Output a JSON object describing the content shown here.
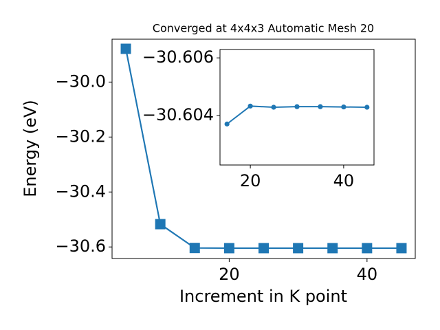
{
  "chart_data": [
    {
      "type": "line",
      "title": "Converged at 4x4x3 Automatic Mesh 20",
      "x_label": "Increment in K point",
      "y_label": "Energy (eV)",
      "x": [
        5,
        10,
        15,
        20,
        25,
        30,
        35,
        40,
        45
      ],
      "values": [
        -29.879,
        -30.517,
        -30.60371,
        -30.60433,
        -30.60429,
        -30.60431,
        -30.60431,
        -30.6043,
        -30.60429
      ],
      "color": "#1f77b4",
      "marker": "square",
      "xlim": [
        3,
        47
      ],
      "ylim": [
        -30.642,
        -29.844
      ],
      "xticks": [
        20,
        40
      ],
      "yticks": [
        {
          "value": -30.0,
          "label": "−30.0"
        },
        {
          "value": -30.2,
          "label": "−30.2"
        },
        {
          "value": -30.4,
          "label": "−30.4"
        },
        {
          "value": -30.6,
          "label": "−30.6"
        }
      ]
    },
    {
      "type": "line",
      "x": [
        15,
        20,
        25,
        30,
        35,
        40,
        45
      ],
      "values": [
        -30.60371,
        -30.60433,
        -30.60429,
        -30.60431,
        -30.60431,
        -30.6043,
        -30.60429
      ],
      "color": "#1f77b4",
      "marker": "circle",
      "xlim": [
        13.5,
        46.5
      ],
      "ylim": [
        -30.60229,
        -30.60629
      ],
      "xticks": [
        20,
        40
      ],
      "yticks": [
        {
          "value": -30.606,
          "label": "−30.606"
        },
        {
          "value": -30.604,
          "label": "−30.604"
        }
      ]
    }
  ]
}
